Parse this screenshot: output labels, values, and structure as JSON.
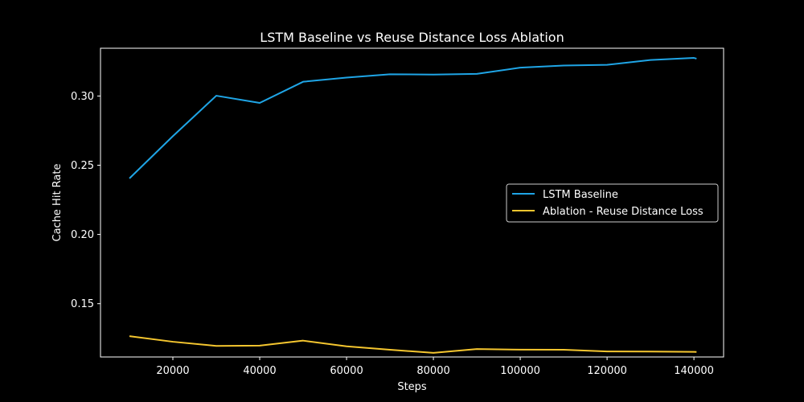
{
  "chart_data": {
    "type": "line",
    "title": "LSTM Baseline vs Reuse Distance Loss Ablation",
    "xlabel": "Steps",
    "ylabel": "Cache Hit Rate",
    "xlim": [
      3333,
      146833
    ],
    "ylim": [
      0.1115,
      0.3345
    ],
    "xticks": [
      20000,
      40000,
      60000,
      80000,
      100000,
      120000,
      140000
    ],
    "xtick_labels": [
      "20000",
      "40000",
      "60000",
      "80000",
      "100000",
      "120000",
      "140000"
    ],
    "yticks": [
      0.15,
      0.2,
      0.25,
      0.3
    ],
    "ytick_labels": [
      "0.15",
      "0.20",
      "0.25",
      "0.30"
    ],
    "grid": false,
    "legend_position": "center-right",
    "background": "#000000",
    "series": [
      {
        "name": "LSTM Baseline",
        "color": "#1fa5e6",
        "x": [
          10000,
          20000,
          30000,
          40000,
          50000,
          60000,
          70000,
          80000,
          90000,
          100000,
          110000,
          120000,
          130000,
          140000,
          140600
        ],
        "y": [
          0.2405,
          0.271,
          0.3002,
          0.295,
          0.3103,
          0.3133,
          0.3157,
          0.3155,
          0.316,
          0.3205,
          0.322,
          0.3225,
          0.326,
          0.3275,
          0.327
        ]
      },
      {
        "name": "Ablation - Reuse Distance Loss",
        "color": "#f5c62f",
        "x": [
          10000,
          20000,
          30000,
          40000,
          50000,
          60000,
          70000,
          80000,
          90000,
          100000,
          110000,
          120000,
          130000,
          140000,
          140600
        ],
        "y": [
          0.1265,
          0.1225,
          0.1195,
          0.1197,
          0.1233,
          0.1192,
          0.1167,
          0.1145,
          0.1172,
          0.1168,
          0.1167,
          0.1155,
          0.1154,
          0.1152,
          0.1151
        ]
      }
    ]
  }
}
